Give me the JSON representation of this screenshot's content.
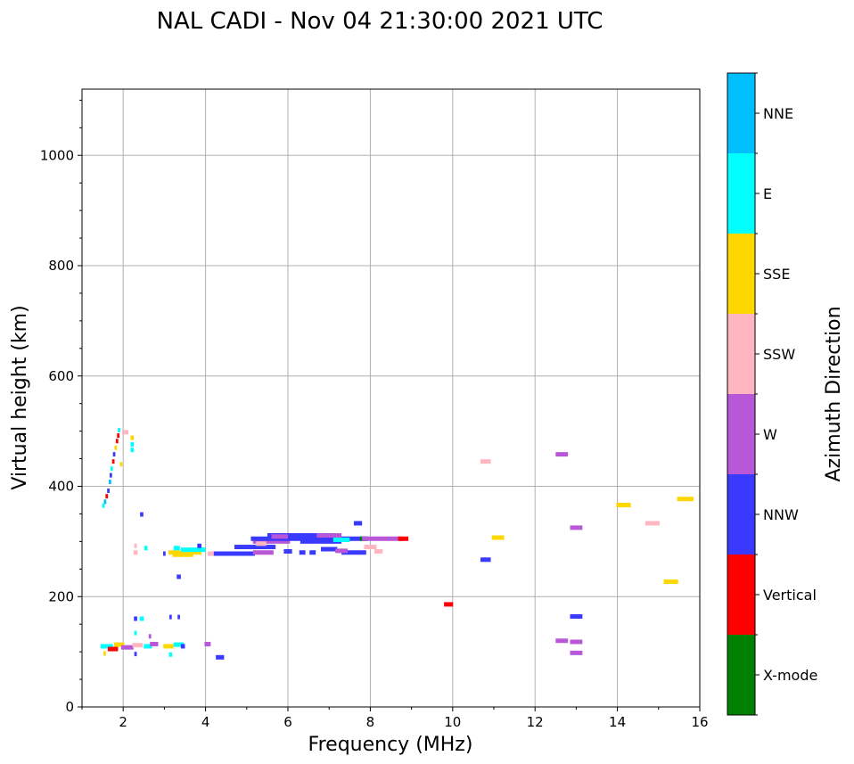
{
  "chart_data": {
    "type": "scatter",
    "title": "NAL CADI - Nov 04 21:30:00 2021 UTC",
    "xlabel": "Frequency (MHz)",
    "ylabel": "Virtual height (km)",
    "xlim": [
      1,
      16
    ],
    "ylim": [
      0,
      1120
    ],
    "xticks": [
      2,
      4,
      6,
      8,
      10,
      12,
      14,
      16
    ],
    "yticks": [
      0,
      200,
      400,
      600,
      800,
      1000
    ],
    "grid": true,
    "colorbar": {
      "label": "Azimuth Direction",
      "categories": [
        {
          "name": "X-mode",
          "color": "#008000"
        },
        {
          "name": "Vertical",
          "color": "#ff0000"
        },
        {
          "name": "NNW",
          "color": "#3a3aff"
        },
        {
          "name": "W",
          "color": "#b858d8"
        },
        {
          "name": "SSW",
          "color": "#ffb6c1"
        },
        {
          "name": "SSE",
          "color": "#ffd700"
        },
        {
          "name": "E",
          "color": "#00ffff"
        },
        {
          "name": "NNE",
          "color": "#00bfff"
        }
      ]
    },
    "echoes": [
      {
        "f": 1.52,
        "h": 365,
        "w": 0.06,
        "dir": "E"
      },
      {
        "f": 1.56,
        "h": 372,
        "w": 0.06,
        "dir": "NNE"
      },
      {
        "f": 1.6,
        "h": 382,
        "w": 0.06,
        "dir": "Vertical"
      },
      {
        "f": 1.64,
        "h": 392,
        "w": 0.06,
        "dir": "NNW"
      },
      {
        "f": 1.68,
        "h": 408,
        "w": 0.06,
        "dir": "NNE"
      },
      {
        "f": 1.7,
        "h": 420,
        "w": 0.06,
        "dir": "NNW"
      },
      {
        "f": 1.72,
        "h": 432,
        "w": 0.06,
        "dir": "E"
      },
      {
        "f": 1.76,
        "h": 445,
        "w": 0.06,
        "dir": "Vertical"
      },
      {
        "f": 1.78,
        "h": 458,
        "w": 0.06,
        "dir": "NNW"
      },
      {
        "f": 1.82,
        "h": 470,
        "w": 0.06,
        "dir": "SSE"
      },
      {
        "f": 1.85,
        "h": 482,
        "w": 0.06,
        "dir": "Vertical"
      },
      {
        "f": 1.88,
        "h": 492,
        "w": 0.06,
        "dir": "Vertical"
      },
      {
        "f": 1.9,
        "h": 502,
        "w": 0.06,
        "dir": "E"
      },
      {
        "f": 1.95,
        "h": 440,
        "w": 0.06,
        "dir": "SSE"
      },
      {
        "f": 2.05,
        "h": 498,
        "w": 0.15,
        "dir": "SSW"
      },
      {
        "f": 2.22,
        "h": 488,
        "w": 0.08,
        "dir": "SSE"
      },
      {
        "f": 2.22,
        "h": 476,
        "w": 0.08,
        "dir": "E"
      },
      {
        "f": 2.22,
        "h": 466,
        "w": 0.08,
        "dir": "E"
      },
      {
        "f": 2.45,
        "h": 349,
        "w": 0.08,
        "dir": "NNW"
      },
      {
        "f": 2.3,
        "h": 292,
        "w": 0.06,
        "dir": "SSW"
      },
      {
        "f": 2.3,
        "h": 280,
        "w": 0.1,
        "dir": "SSW"
      },
      {
        "f": 2.55,
        "h": 288,
        "w": 0.08,
        "dir": "E"
      },
      {
        "f": 3.0,
        "h": 278,
        "w": 0.06,
        "dir": "NNW"
      },
      {
        "f": 3.5,
        "h": 280,
        "w": 0.8,
        "dir": "SSE"
      },
      {
        "f": 3.7,
        "h": 285,
        "w": 0.6,
        "dir": "E"
      },
      {
        "f": 3.45,
        "h": 276,
        "w": 0.5,
        "dir": "SSE"
      },
      {
        "f": 3.3,
        "h": 288,
        "w": 0.15,
        "dir": "E"
      },
      {
        "f": 3.85,
        "h": 292,
        "w": 0.1,
        "dir": "NNW"
      },
      {
        "f": 4.2,
        "h": 278,
        "w": 0.3,
        "dir": "SSW"
      },
      {
        "f": 3.35,
        "h": 236,
        "w": 0.1,
        "dir": "NNW"
      },
      {
        "f": 4.7,
        "h": 278,
        "w": 1.0,
        "dir": "NNW"
      },
      {
        "f": 5.2,
        "h": 290,
        "w": 1.0,
        "dir": "NNW"
      },
      {
        "f": 5.6,
        "h": 300,
        "w": 0.9,
        "dir": "W"
      },
      {
        "f": 5.35,
        "h": 296,
        "w": 0.25,
        "dir": "SSW"
      },
      {
        "f": 6.5,
        "h": 305,
        "w": 2.8,
        "dir": "NNW"
      },
      {
        "f": 6.3,
        "h": 311,
        "w": 1.6,
        "dir": "NNW"
      },
      {
        "f": 5.8,
        "h": 309,
        "w": 0.4,
        "dir": "W"
      },
      {
        "f": 6.8,
        "h": 300,
        "w": 1.0,
        "dir": "NNW"
      },
      {
        "f": 7.0,
        "h": 311,
        "w": 0.6,
        "dir": "W"
      },
      {
        "f": 7.3,
        "h": 303,
        "w": 0.4,
        "dir": "E"
      },
      {
        "f": 7.85,
        "h": 305,
        "w": 0.2,
        "dir": "X-mode"
      },
      {
        "f": 8.3,
        "h": 305,
        "w": 1.0,
        "dir": "W"
      },
      {
        "f": 8.8,
        "h": 305,
        "w": 0.25,
        "dir": "Vertical"
      },
      {
        "f": 8.0,
        "h": 290,
        "w": 0.3,
        "dir": "SSW"
      },
      {
        "f": 7.6,
        "h": 280,
        "w": 0.6,
        "dir": "NNW"
      },
      {
        "f": 7.0,
        "h": 286,
        "w": 0.4,
        "dir": "NNW"
      },
      {
        "f": 7.3,
        "h": 283,
        "w": 0.3,
        "dir": "W"
      },
      {
        "f": 5.4,
        "h": 280,
        "w": 0.5,
        "dir": "W"
      },
      {
        "f": 6.0,
        "h": 282,
        "w": 0.2,
        "dir": "NNW"
      },
      {
        "f": 6.35,
        "h": 280,
        "w": 0.15,
        "dir": "NNW"
      },
      {
        "f": 6.6,
        "h": 280,
        "w": 0.15,
        "dir": "NNW"
      },
      {
        "f": 8.2,
        "h": 282,
        "w": 0.2,
        "dir": "SSW"
      },
      {
        "f": 7.7,
        "h": 333,
        "w": 0.2,
        "dir": "NNW"
      },
      {
        "f": 1.6,
        "h": 110,
        "w": 0.3,
        "dir": "E"
      },
      {
        "f": 1.75,
        "h": 105,
        "w": 0.25,
        "dir": "Vertical"
      },
      {
        "f": 1.9,
        "h": 113,
        "w": 0.25,
        "dir": "SSE"
      },
      {
        "f": 2.1,
        "h": 108,
        "w": 0.3,
        "dir": "W"
      },
      {
        "f": 2.35,
        "h": 112,
        "w": 0.25,
        "dir": "SSW"
      },
      {
        "f": 2.6,
        "h": 110,
        "w": 0.2,
        "dir": "E"
      },
      {
        "f": 2.75,
        "h": 114,
        "w": 0.2,
        "dir": "W"
      },
      {
        "f": 3.1,
        "h": 110,
        "w": 0.25,
        "dir": "SSE"
      },
      {
        "f": 3.35,
        "h": 113,
        "w": 0.25,
        "dir": "E"
      },
      {
        "f": 3.45,
        "h": 110,
        "w": 0.1,
        "dir": "NNW"
      },
      {
        "f": 1.55,
        "h": 97,
        "w": 0.06,
        "dir": "SSE"
      },
      {
        "f": 2.3,
        "h": 160,
        "w": 0.08,
        "dir": "NNW"
      },
      {
        "f": 2.45,
        "h": 160,
        "w": 0.1,
        "dir": "E"
      },
      {
        "f": 2.3,
        "h": 134,
        "w": 0.06,
        "dir": "E"
      },
      {
        "f": 2.65,
        "h": 128,
        "w": 0.06,
        "dir": "W"
      },
      {
        "f": 2.3,
        "h": 96,
        "w": 0.06,
        "dir": "NNW"
      },
      {
        "f": 3.15,
        "h": 95,
        "w": 0.08,
        "dir": "E"
      },
      {
        "f": 3.15,
        "h": 163,
        "w": 0.06,
        "dir": "NNW"
      },
      {
        "f": 3.35,
        "h": 163,
        "w": 0.06,
        "dir": "NNW"
      },
      {
        "f": 4.05,
        "h": 114,
        "w": 0.15,
        "dir": "W"
      },
      {
        "f": 4.35,
        "h": 90,
        "w": 0.2,
        "dir": "NNW"
      },
      {
        "f": 10.8,
        "h": 445,
        "w": 0.25,
        "dir": "SSW"
      },
      {
        "f": 11.1,
        "h": 307,
        "w": 0.3,
        "dir": "SSE"
      },
      {
        "f": 10.8,
        "h": 267,
        "w": 0.25,
        "dir": "NNW"
      },
      {
        "f": 9.9,
        "h": 186,
        "w": 0.22,
        "dir": "Vertical"
      },
      {
        "f": 12.65,
        "h": 458,
        "w": 0.3,
        "dir": "W"
      },
      {
        "f": 13.0,
        "h": 325,
        "w": 0.3,
        "dir": "W"
      },
      {
        "f": 13.0,
        "h": 164,
        "w": 0.3,
        "dir": "NNW"
      },
      {
        "f": 12.65,
        "h": 120,
        "w": 0.3,
        "dir": "W"
      },
      {
        "f": 13.0,
        "h": 118,
        "w": 0.3,
        "dir": "W"
      },
      {
        "f": 13.0,
        "h": 98,
        "w": 0.3,
        "dir": "W"
      },
      {
        "f": 14.15,
        "h": 366,
        "w": 0.35,
        "dir": "SSE"
      },
      {
        "f": 14.85,
        "h": 333,
        "w": 0.35,
        "dir": "SSW"
      },
      {
        "f": 15.65,
        "h": 377,
        "w": 0.4,
        "dir": "SSE"
      },
      {
        "f": 15.3,
        "h": 227,
        "w": 0.35,
        "dir": "SSE"
      }
    ]
  }
}
